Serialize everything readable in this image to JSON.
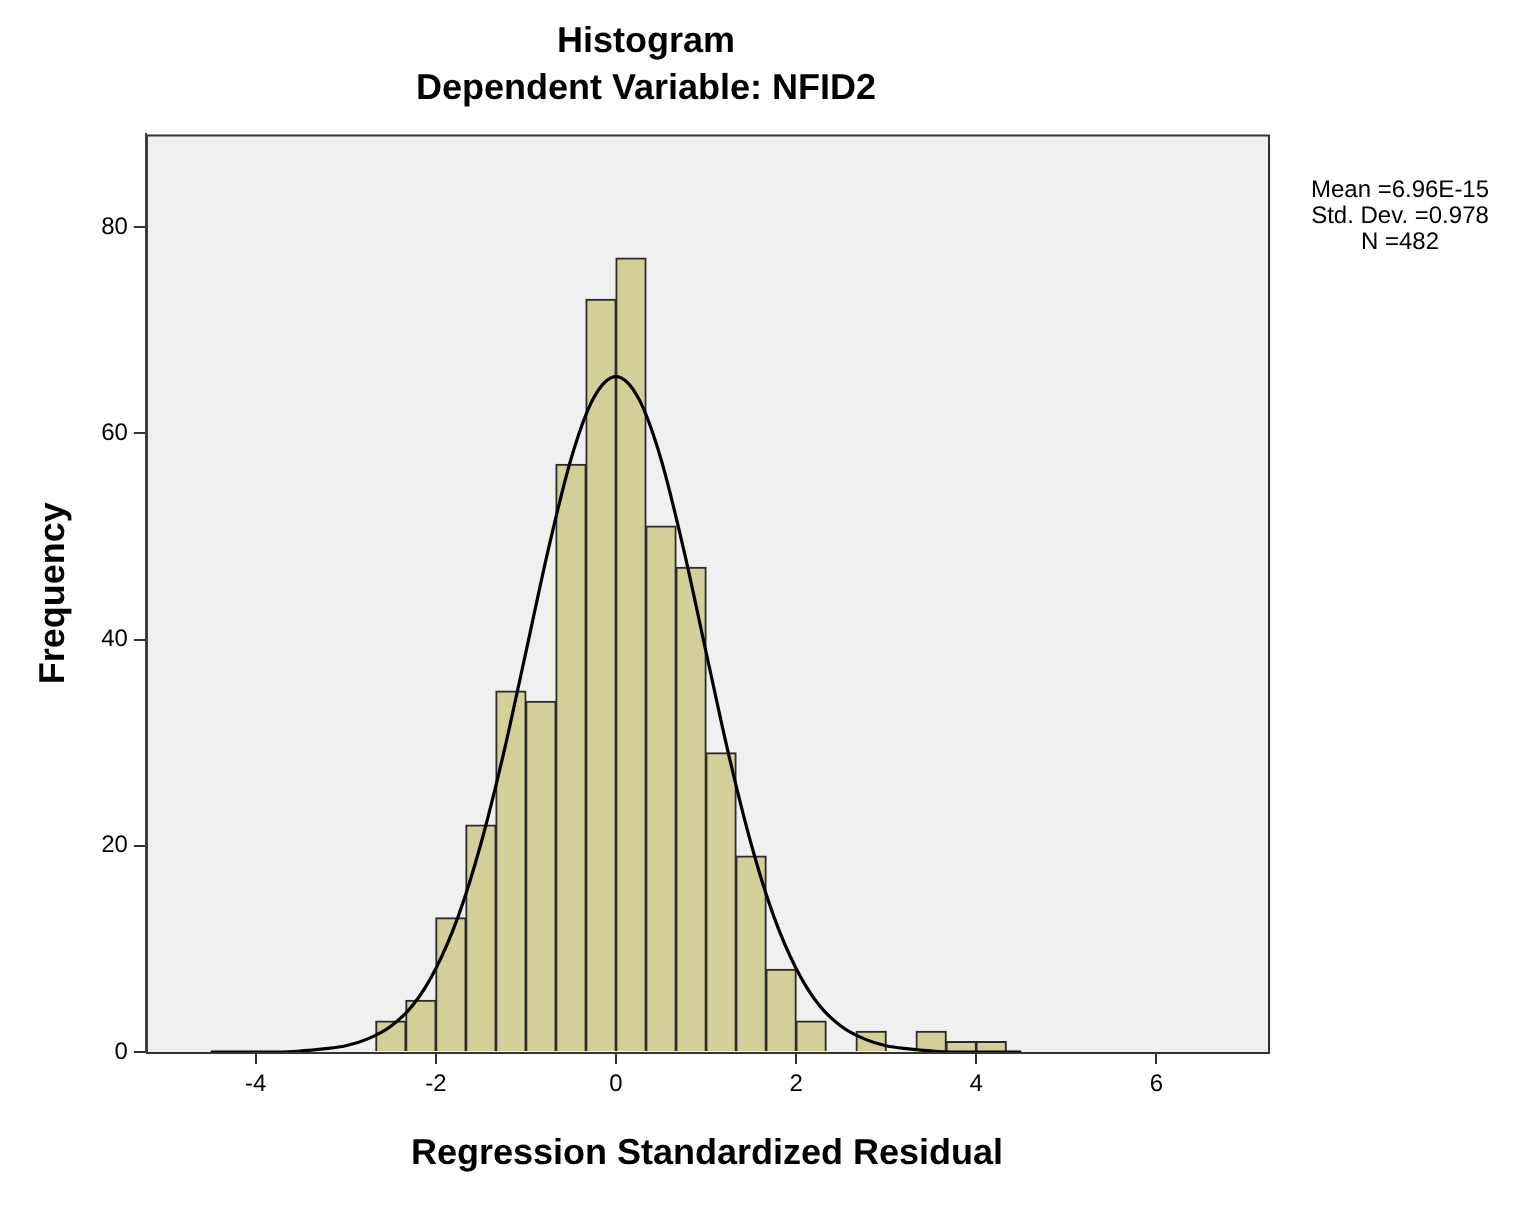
{
  "chart_data": {
    "type": "histogram",
    "title": "Histogram",
    "subtitle": "Dependent Variable: NFID2",
    "xlabel": "Regression Standardized Residual",
    "ylabel": "Frequency",
    "annotations": [
      "Mean =6.96E-15",
      "Std. Dev. =0.978",
      "N =482"
    ],
    "series": [
      {
        "bins": [
          -2.667,
          -2.333,
          -2,
          -1.667,
          -1.333,
          -1,
          -0.667,
          -0.333,
          0,
          0.333,
          0.667,
          1,
          1.333,
          1.667,
          2,
          2.333,
          2.667,
          3,
          3.333,
          3.667,
          4,
          4.333
        ],
        "values": [
          3,
          5,
          13,
          22,
          35,
          34,
          57,
          73,
          77,
          51,
          47,
          29,
          19,
          8,
          3,
          0,
          2,
          0,
          2,
          1,
          1
        ],
        "color": "#d3cf99"
      },
      {
        "type": "line",
        "x": [
          -4.5,
          -4,
          -3.75,
          -3.5,
          -3.25,
          -3,
          -2.75,
          -2.5,
          -2.25,
          -2,
          -1.75,
          -1.5,
          -1.25,
          -1,
          -0.75,
          -0.5,
          -0.25,
          0,
          0.25,
          0.5,
          0.75,
          1,
          1.25,
          1.5,
          1.75,
          2,
          2.25,
          2.5,
          2.75,
          3,
          3.25,
          3.5,
          3.75,
          4,
          4.5
        ],
        "values": [
          0,
          0,
          0,
          0.1,
          0.3,
          0.6,
          1.3,
          2.5,
          4.6,
          8.1,
          13.2,
          20.2,
          28.9,
          38.8,
          48.8,
          57.5,
          63.4,
          65.5,
          63.4,
          57.5,
          48.8,
          38.8,
          28.9,
          20.2,
          13.2,
          8.1,
          4.6,
          2.5,
          1.3,
          0.6,
          0.3,
          0.1,
          0,
          0,
          0
        ],
        "color": "#000000"
      }
    ],
    "xlim": [
      -5.22,
      7.24
    ],
    "ylim": [
      0,
      89
    ],
    "xticks": [
      -4,
      -2,
      0,
      2,
      4,
      6
    ],
    "yticks": [
      0,
      20,
      40,
      60,
      80
    ]
  }
}
